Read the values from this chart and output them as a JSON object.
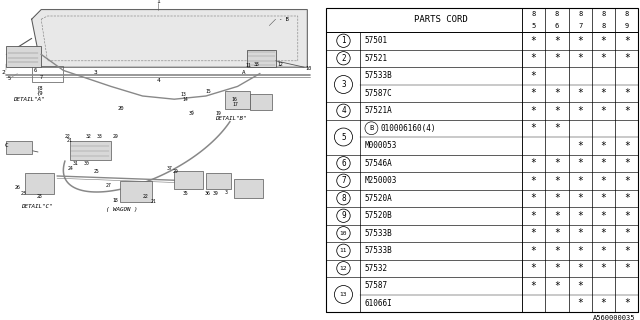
{
  "bg_color": "#ffffff",
  "diagram_code": "A560000035",
  "table": {
    "header_col": "PARTS CORD",
    "year_cols": [
      "85",
      "86",
      "87",
      "88",
      "89"
    ],
    "rows": [
      {
        "num": "1",
        "parts": [
          "57501"
        ],
        "marks": [
          [
            1,
            1,
            1,
            1,
            1
          ]
        ]
      },
      {
        "num": "2",
        "parts": [
          "57521"
        ],
        "marks": [
          [
            1,
            1,
            1,
            1,
            1
          ]
        ]
      },
      {
        "num": "3",
        "parts": [
          "57533B",
          "57587C"
        ],
        "marks": [
          [
            1,
            0,
            0,
            0,
            0
          ],
          [
            1,
            1,
            1,
            1,
            1
          ]
        ]
      },
      {
        "num": "4",
        "parts": [
          "57521A"
        ],
        "marks": [
          [
            1,
            1,
            1,
            1,
            1
          ]
        ]
      },
      {
        "num": "5",
        "parts": [
          "(B)010006160(4)",
          "M000053"
        ],
        "marks": [
          [
            1,
            1,
            0,
            0,
            0
          ],
          [
            0,
            0,
            1,
            1,
            1
          ]
        ]
      },
      {
        "num": "6",
        "parts": [
          "57546A"
        ],
        "marks": [
          [
            1,
            1,
            1,
            1,
            1
          ]
        ]
      },
      {
        "num": "7",
        "parts": [
          "M250003"
        ],
        "marks": [
          [
            1,
            1,
            1,
            1,
            1
          ]
        ]
      },
      {
        "num": "8",
        "parts": [
          "57520A"
        ],
        "marks": [
          [
            1,
            1,
            1,
            1,
            1
          ]
        ]
      },
      {
        "num": "9",
        "parts": [
          "57520B"
        ],
        "marks": [
          [
            1,
            1,
            1,
            1,
            1
          ]
        ]
      },
      {
        "num": "10",
        "parts": [
          "57533B"
        ],
        "marks": [
          [
            1,
            1,
            1,
            1,
            1
          ]
        ]
      },
      {
        "num": "11",
        "parts": [
          "57533B"
        ],
        "marks": [
          [
            1,
            1,
            1,
            1,
            1
          ]
        ]
      },
      {
        "num": "12",
        "parts": [
          "57532"
        ],
        "marks": [
          [
            1,
            1,
            1,
            1,
            1
          ]
        ]
      },
      {
        "num": "13",
        "parts": [
          "57587",
          "61066I"
        ],
        "marks": [
          [
            1,
            1,
            1,
            0,
            0
          ],
          [
            0,
            0,
            1,
            1,
            1
          ]
        ]
      }
    ]
  },
  "left_diagram": {
    "gray": "#aaaaaa",
    "dark": "#555555",
    "mid": "#777777"
  }
}
